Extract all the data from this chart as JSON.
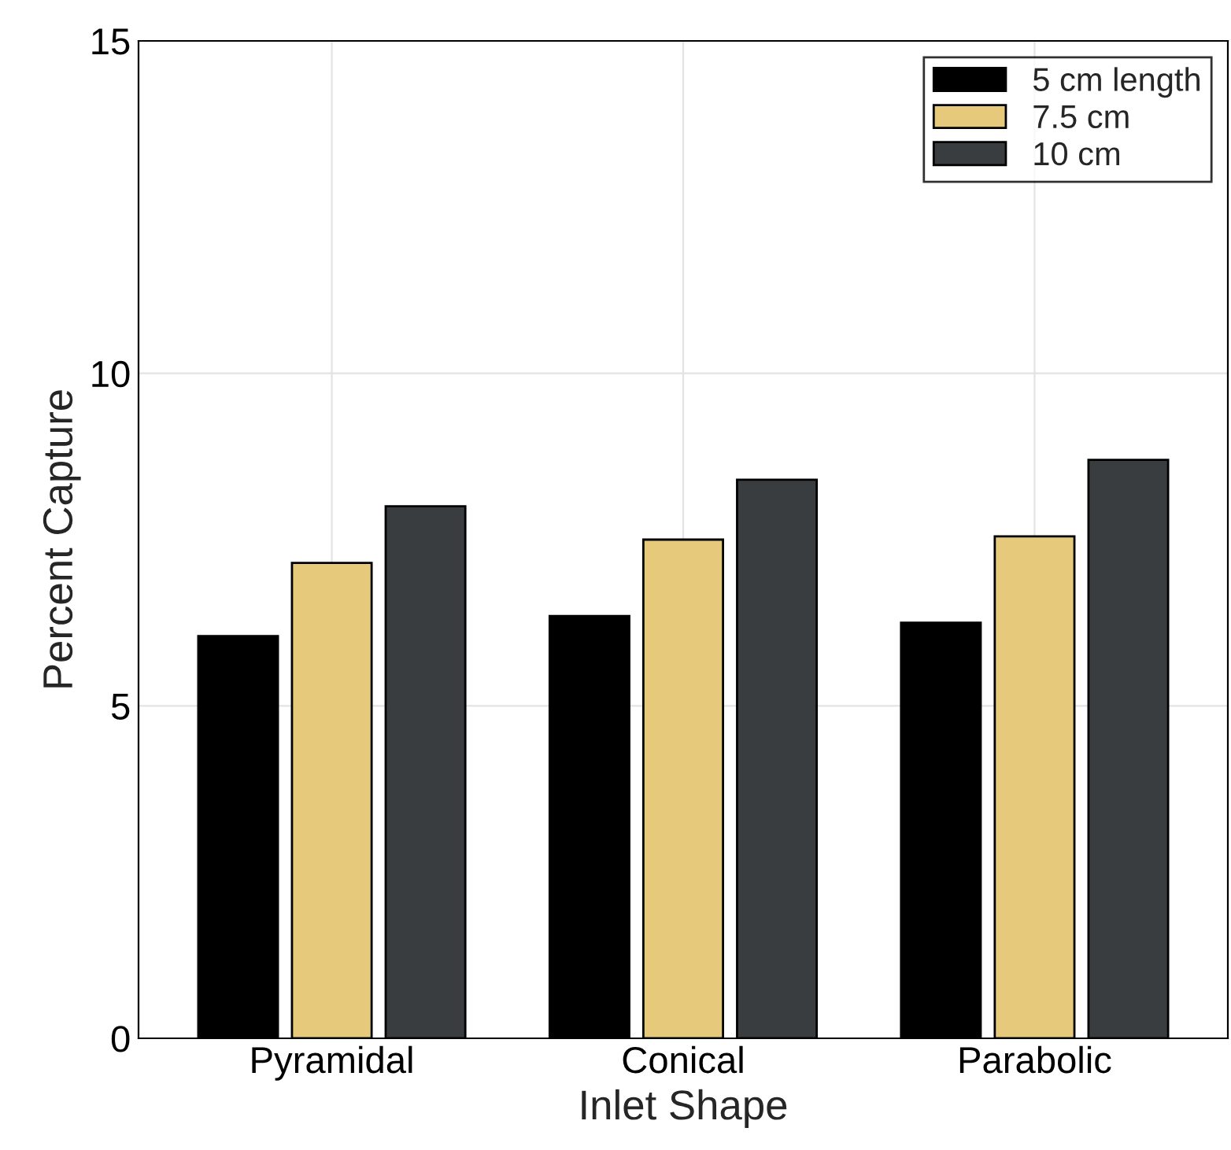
{
  "chart_data": {
    "type": "bar",
    "xlabel": "Inlet Shape",
    "ylabel": "Percent Capture",
    "categories": [
      "Pyramidal",
      "Conical",
      "Parabolic"
    ],
    "series": [
      {
        "name": "5 cm length",
        "color": "#000000",
        "values": [
          6.05,
          6.35,
          6.25
        ]
      },
      {
        "name": "7.5 cm",
        "color": "#e6c97a",
        "values": [
          7.15,
          7.5,
          7.55
        ]
      },
      {
        "name": "10 cm",
        "color": "#3a3d40",
        "values": [
          8.0,
          8.4,
          8.7
        ]
      }
    ],
    "ylim": [
      0,
      15
    ],
    "yticks": [
      0,
      5,
      10,
      15
    ],
    "grid": true,
    "legend": "top right"
  }
}
